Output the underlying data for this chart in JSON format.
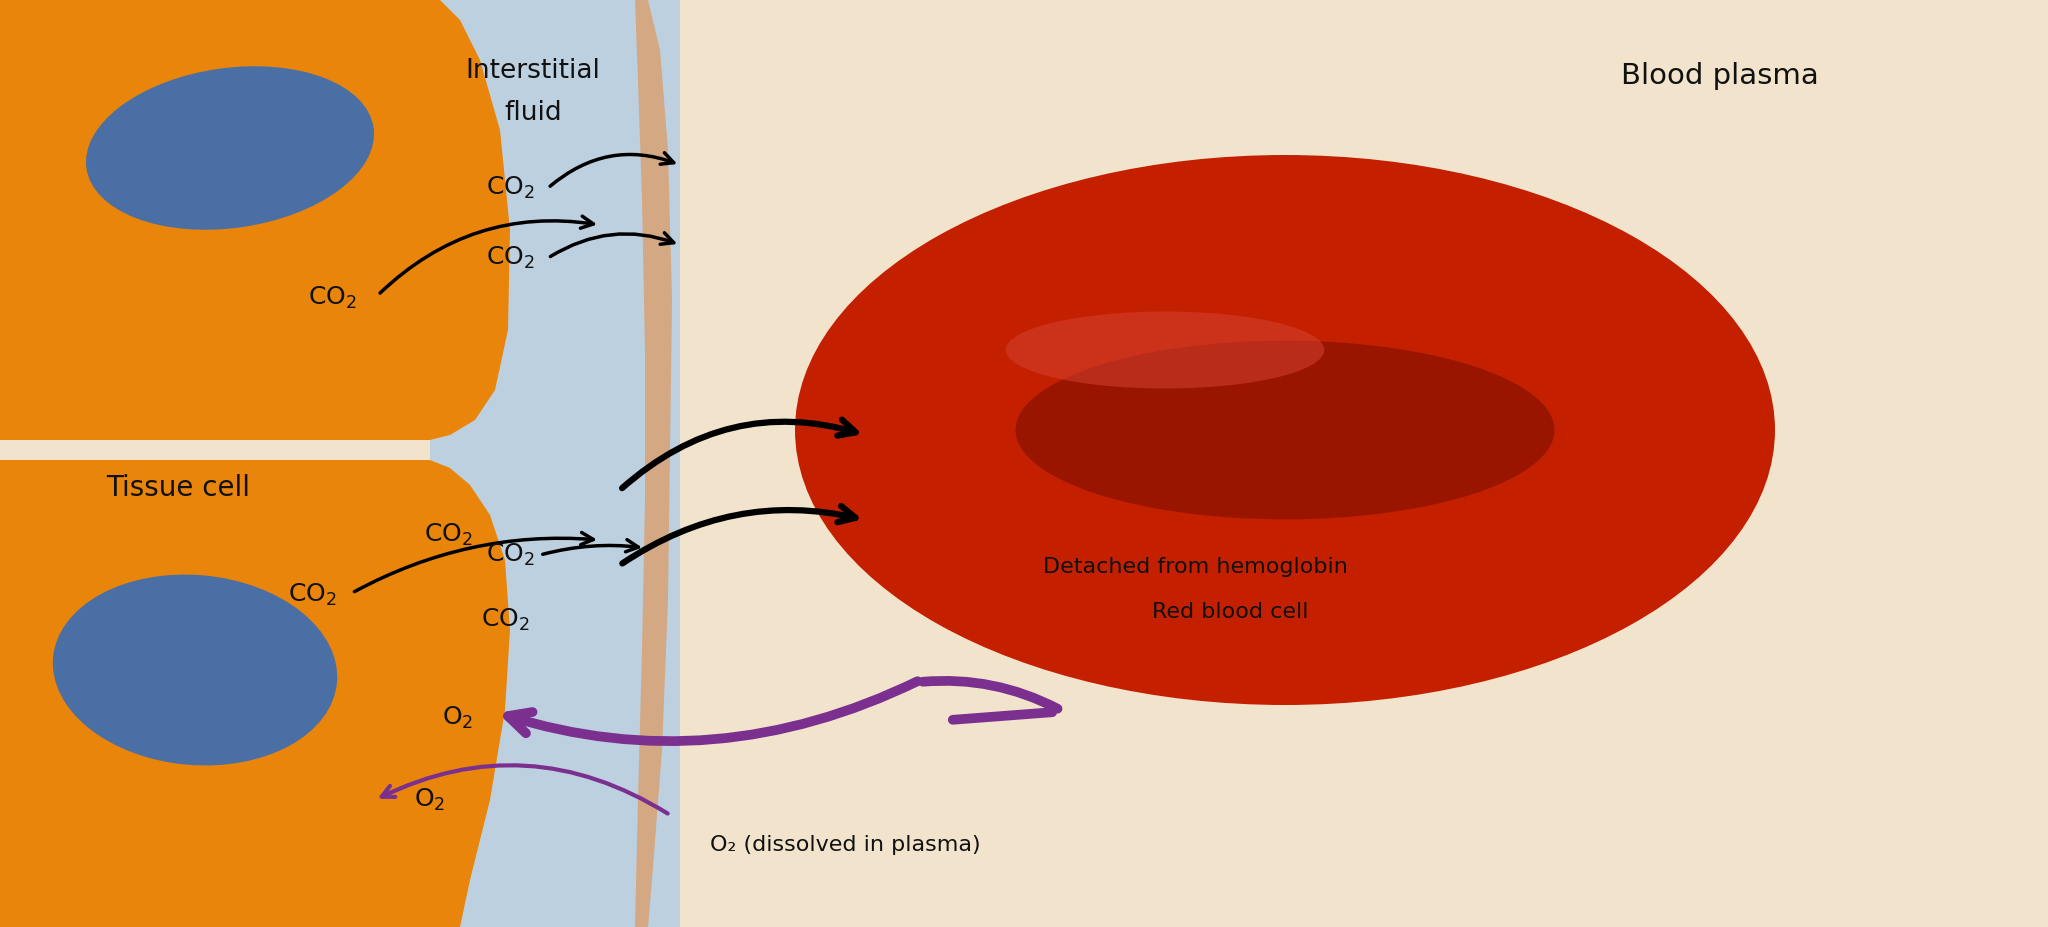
{
  "bg_plasma_color": "#F2E4CC",
  "bg_interstitial_color": "#BDD0DF",
  "tissue_color": "#E8850A",
  "capillary_wall_color": "#D4A882",
  "nucleus_color": "#4A6FA5",
  "rbc_outer_color": "#C42000",
  "rbc_inner_color": "#9A1500",
  "rbc_highlight_color": "#D44030",
  "arrow_co2_color": "#111111",
  "arrow_o2_color": "#7B3090",
  "text_color": "#111111",
  "label_interstitial_line1": "Interstitial",
  "label_interstitial_line2": "fluid",
  "label_blood_plasma": "Blood plasma",
  "label_tissue_cell": "Tissue cell",
  "label_detached": "Detached from hemoglobin",
  "label_rbc": "Red blood cell",
  "label_o2_dissolved": "O₂ (dissolved in plasma)",
  "figsize": [
    20.48,
    9.27
  ],
  "dpi": 100
}
